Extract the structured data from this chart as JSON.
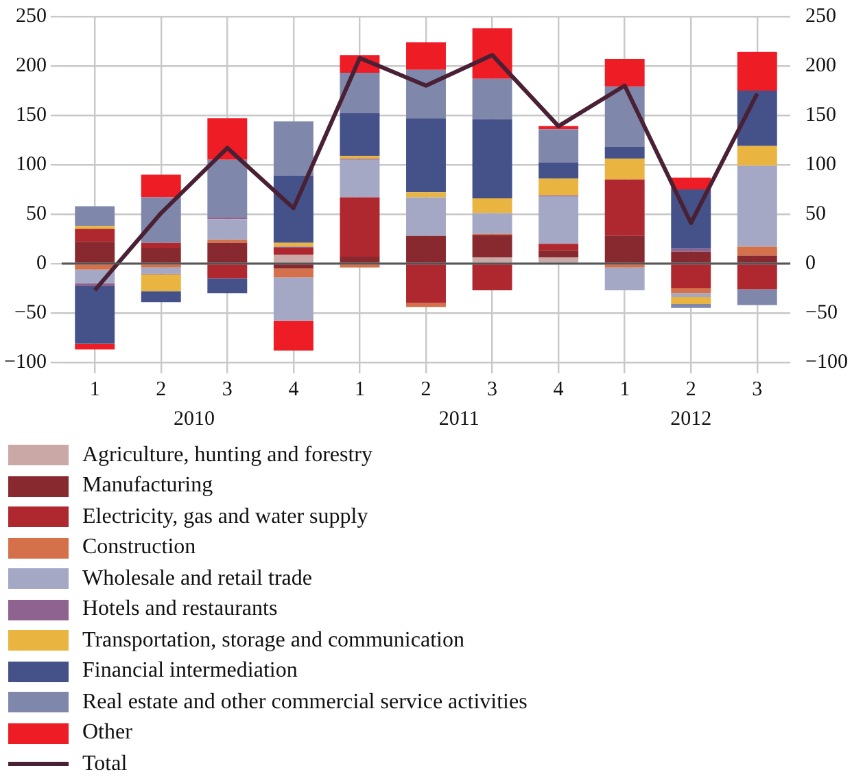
{
  "chart_data": {
    "type": "bar",
    "stacked": true,
    "categories": [
      "1",
      "2",
      "3",
      "4",
      "1",
      "2",
      "3",
      "4",
      "1",
      "2",
      "3"
    ],
    "annotations": [
      "2010",
      "2011",
      "2012"
    ],
    "ylim": [
      -100,
      250
    ],
    "yticks": [
      {
        "value": -100,
        "label": "−100"
      },
      {
        "value": -50,
        "label": "−50"
      },
      0,
      50,
      100,
      150,
      200,
      250
    ],
    "y2lim": [
      -100,
      250
    ],
    "y2ticks": [
      {
        "value": -100,
        "label": "−100"
      },
      {
        "value": -50,
        "label": "−50"
      },
      0,
      50,
      100,
      150,
      200,
      250
    ],
    "grid": true,
    "legend": "bottom",
    "ref_lines": [
      {
        "axis": "y",
        "value": 0,
        "color": "#555555"
      }
    ],
    "series": [
      {
        "name": "Agriculture, hunting and forestry",
        "color": "#c9a8a6",
        "values": [
          null,
          0,
          0,
          9,
          null,
          0,
          6,
          6,
          0,
          0,
          0
        ]
      },
      {
        "name": "Manufacturing",
        "color": "#87292f",
        "values": [
          22,
          16,
          21,
          -5,
          7,
          28,
          23,
          7,
          28,
          12,
          8
        ]
      },
      {
        "name": "Electricity, gas and water supply",
        "color": "#b0282f",
        "values": [
          13,
          5,
          -15,
          7,
          60,
          -40,
          -27,
          7,
          57,
          -25,
          -26
        ]
      },
      {
        "name": "Construction",
        "color": "#d4704a",
        "values": [
          -6,
          -4,
          3,
          -9,
          -4,
          -4,
          1,
          0,
          -4,
          -5,
          9
        ]
      },
      {
        "name": "Wholesale and retail trade",
        "color": "#a4a8c4",
        "values": [
          -14,
          -6,
          21,
          -44,
          38,
          39,
          21,
          48,
          -23,
          -4,
          82
        ]
      },
      {
        "name": "Hotels and restaurants",
        "color": "#8f6390",
        "values": [
          -3,
          -1,
          2,
          1,
          1,
          0,
          0,
          1,
          0,
          3,
          0
        ]
      },
      {
        "name": "Transportation, storage and communication",
        "color": "#e9b440",
        "values": [
          3,
          -17,
          0,
          4,
          3,
          5,
          15,
          17,
          21,
          -7,
          20
        ]
      },
      {
        "name": "Financial intermediation",
        "color": "#45528a",
        "values": [
          -58,
          -11,
          -15,
          68,
          43,
          75,
          80,
          16,
          12,
          60,
          56
        ]
      },
      {
        "name": "Real estate and other commercial service activities",
        "color": "#7f88ab",
        "values": [
          20,
          46,
          58,
          55,
          41,
          49,
          41,
          34,
          61,
          -4,
          -16
        ]
      },
      {
        "name": "Other",
        "color": "#ee1c25",
        "values": [
          -6,
          23,
          42,
          -30,
          18,
          28,
          51,
          3,
          28,
          12,
          39
        ]
      },
      {
        "name": "Total",
        "type": "line",
        "color": "#4a2035",
        "values": [
          -27,
          51,
          117,
          56,
          208,
          180,
          211,
          139,
          180,
          41,
          172
        ]
      }
    ]
  }
}
